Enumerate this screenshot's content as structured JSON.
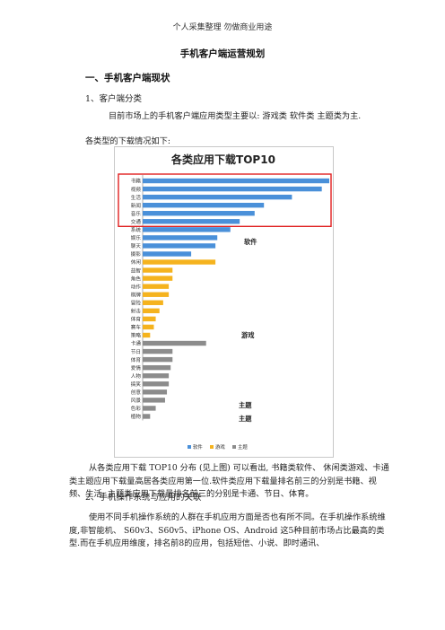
{
  "header_note": "个人采集整理 勿做商业用途",
  "doc_title": "手机客户端运营规划",
  "section1_heading": "一、手机客户端现状",
  "section1_sub1": "1、客户端分类",
  "para1": "目前市场上的手机客户端应用类型主要以: 游戏类 软件类 主题类为主.",
  "para2": "各类型的下载情况如下:",
  "chart_data": {
    "type": "bar",
    "orientation": "horizontal",
    "title": "各类应用下载TOP10",
    "categories": [
      "书籍",
      "视频",
      "生活",
      "新闻",
      "音乐",
      "交通",
      "系统",
      "娱乐",
      "聊天",
      "摄影",
      "休闲",
      "益智",
      "角色",
      "动作",
      "棋牌",
      "冒险",
      "射击",
      "体育",
      "赛车",
      "策略",
      "卡通",
      "节日",
      "体育",
      "爱情",
      "人物",
      "搞笑",
      "创意",
      "风景",
      "色彩",
      "植物"
    ],
    "series": [
      {
        "name": "软件",
        "color": "#4a90d9",
        "values": [
          100,
          96,
          80,
          65,
          60,
          52,
          47,
          40,
          39,
          26,
          0,
          0,
          0,
          0,
          0,
          0,
          0,
          0,
          0,
          0,
          0,
          0,
          0,
          0,
          0,
          0,
          0,
          0,
          0,
          0
        ]
      },
      {
        "name": "游戏",
        "color": "#f5b31e",
        "values": [
          0,
          0,
          0,
          0,
          0,
          0,
          0,
          0,
          0,
          0,
          39,
          16,
          16,
          14,
          14,
          11,
          9,
          7,
          6,
          4,
          0,
          0,
          0,
          0,
          0,
          0,
          0,
          0,
          0,
          0
        ]
      },
      {
        "name": "主题",
        "color": "#8c8c8c",
        "values": [
          0,
          0,
          0,
          0,
          0,
          0,
          0,
          0,
          0,
          0,
          0,
          0,
          0,
          0,
          0,
          0,
          0,
          0,
          0,
          0,
          34,
          16,
          16,
          15,
          14,
          14,
          13,
          12,
          7,
          4
        ]
      }
    ],
    "xlim": [
      0,
      100
    ],
    "legend_position": "bottom",
    "annotations": [
      "软件",
      "游戏",
      "主题",
      "主题"
    ],
    "highlight_box": "top-6"
  },
  "para3": "从各类应用下载 TOP10 分布 (见上图) 可以看出,  书籍类软件、 休闲类游戏、卡通类主题应用下载量高居各类应用第一位.软件类应用下载量排名前三的分别是书籍、视频、生活; 主题类应用下载量排名前三的分别是卡通、节日、体育。",
  "section1_sub2": "2、手机操作系统与应用的关联",
  "para4": "使用不同手机操作系统的人群在手机应用方面是否也有所不同。在手机操作系统维度,非智能机、 S60v3、S60v5、iPhone OS、Android 这5种目前市场占比最高的类型.而在手机应用维度，排名前8的应用，包括短信、小说、即时通讯、"
}
